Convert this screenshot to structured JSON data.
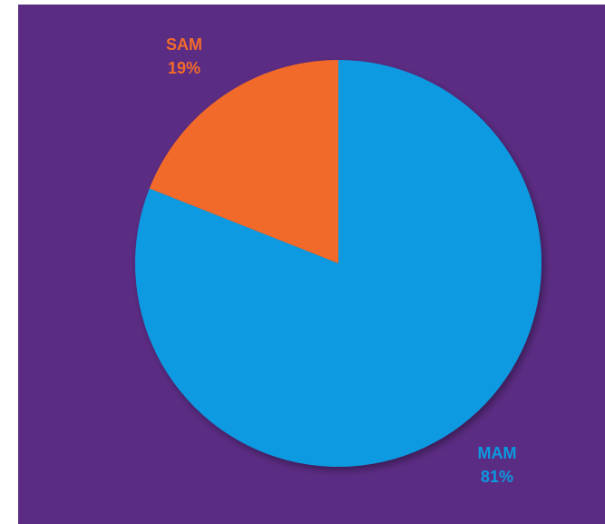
{
  "chart_data": {
    "type": "pie",
    "title": "",
    "slices": [
      {
        "label": "MAM",
        "value": 81,
        "value_label": "81%",
        "color": "#0a9ae0"
      },
      {
        "label": "SAM",
        "value": 19,
        "value_label": "19%",
        "color": "#f26b2a"
      }
    ],
    "start_angle_deg": 0,
    "direction": "clockwise",
    "background_color": "#5b2c83",
    "legend": "none",
    "labels_outside": true
  }
}
